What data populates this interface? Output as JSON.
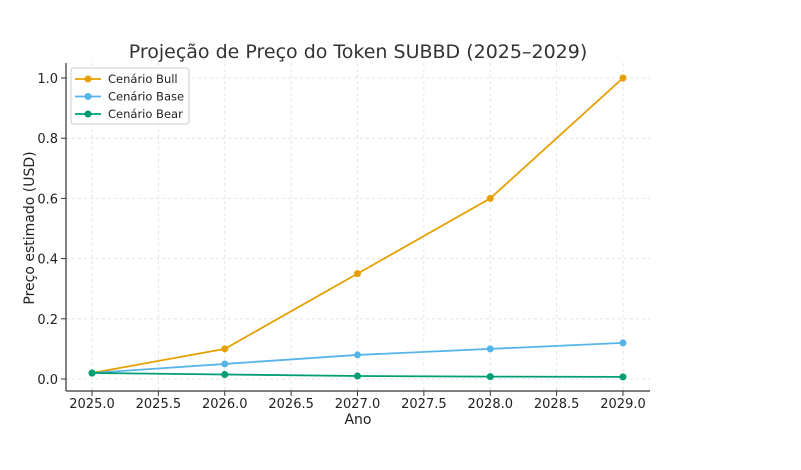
{
  "chart_data": {
    "type": "line",
    "title": "Projeção de Preço do Token SUBBD (2025–2029)",
    "xlabel": "Ano",
    "ylabel": "Preço estimado (USD)",
    "x": [
      2025,
      2026,
      2027,
      2028,
      2029
    ],
    "xlim": [
      2024.87,
      2029.2
    ],
    "ylim": [
      -0.04,
      1.05
    ],
    "xticks": [
      "2025.0",
      "2025.5",
      "2026.0",
      "2026.5",
      "2027.0",
      "2027.5",
      "2028.0",
      "2028.5",
      "2029.0"
    ],
    "yticks": [
      "0.0",
      "0.2",
      "0.4",
      "0.6",
      "0.8",
      "1.0"
    ],
    "grid": true,
    "legend_position": "upper left",
    "series": [
      {
        "name": "Cenário Bull",
        "color": "#E69F00",
        "values": [
          0.02,
          0.1,
          0.35,
          0.6,
          1.0
        ]
      },
      {
        "name": "Cenário Base",
        "color": "#56B4E9",
        "values": [
          0.02,
          0.05,
          0.08,
          0.1,
          0.12
        ]
      },
      {
        "name": "Cenário Bear",
        "color": "#009E73",
        "values": [
          0.02,
          0.015,
          0.01,
          0.008,
          0.007
        ]
      }
    ]
  }
}
